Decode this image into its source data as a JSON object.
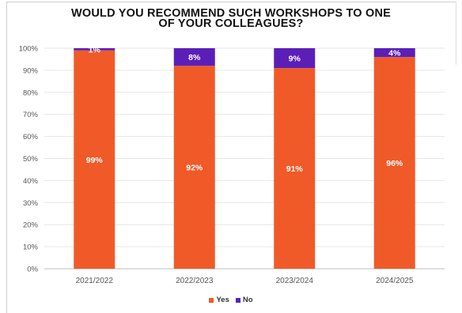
{
  "chart_data": {
    "type": "bar",
    "stacked": true,
    "title_lines": [
      "WOULD YOU RECOMMEND SUCH WORKSHOPS TO ONE",
      "OF YOUR COLLEAGUES?"
    ],
    "categories": [
      "2021/2022",
      "2022/2023",
      "2023/2024",
      "2024/2025"
    ],
    "series": [
      {
        "name": "Yes",
        "values": [
          99,
          92,
          91,
          96
        ],
        "labels": [
          "99%",
          "92%",
          "91%",
          "96%"
        ],
        "color": "#f05a28"
      },
      {
        "name": "No",
        "values": [
          1,
          8,
          9,
          4
        ],
        "labels": [
          "1%",
          "8%",
          "9%",
          "4%"
        ],
        "color": "#5b1fb8"
      }
    ],
    "ylim": [
      0,
      100
    ],
    "yticks": [
      "0%",
      "10%",
      "20%",
      "30%",
      "40%",
      "50%",
      "60%",
      "70%",
      "80%",
      "90%",
      "100%"
    ],
    "grid": true,
    "legend": "bottom-center"
  }
}
